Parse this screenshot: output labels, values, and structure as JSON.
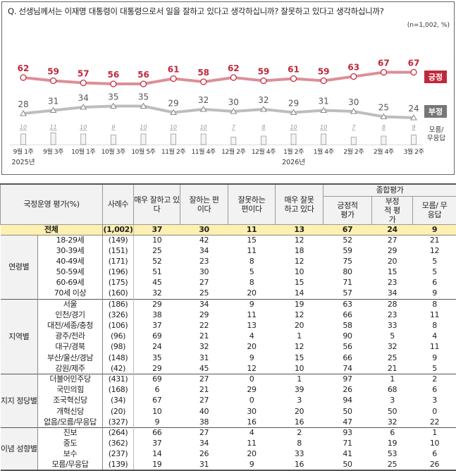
{
  "chart_data": {
    "type": "line",
    "title": "Q. 선생님께서는 이재명 대통령이 대통령으로서 일을 잘하고 있다고 생각하십니까? 잘못하고 있다고 생각하십니까?",
    "note": "(n=1,002, %)",
    "categories": [
      "9월 1주",
      "9월 3주",
      "10월 1주",
      "10월 3주",
      "10월 5주",
      "11월 2주",
      "11월 4주",
      "12월 2주",
      "12월 4주",
      "1월 2주",
      "1월 4주",
      "2월 2주",
      "2월 4주",
      "3월 2주"
    ],
    "year_labels": [
      {
        "at": "9월 1주",
        "label": "2025년"
      },
      {
        "at": "1월 2주",
        "label": "2026년"
      }
    ],
    "series": [
      {
        "name": "긍정",
        "type": "line",
        "color": "#c0283c",
        "values": [
          62,
          59,
          57,
          56,
          56,
          61,
          58,
          62,
          59,
          61,
          59,
          63,
          67,
          67
        ]
      },
      {
        "name": "부정",
        "type": "line",
        "color": "#8c8c8c",
        "values": [
          28,
          31,
          34,
          35,
          35,
          29,
          32,
          30,
          32,
          29,
          31,
          30,
          25,
          24
        ]
      },
      {
        "name": "모름/무응답",
        "type": "bar",
        "color": "#f4f4f4",
        "values": [
          10,
          11,
          10,
          9,
          10,
          10,
          10,
          7,
          8,
          10,
          10,
          7,
          8,
          9
        ]
      }
    ],
    "grid": false,
    "legend": "right"
  },
  "table": {
    "headers": {
      "title": "국정운영 평가(%)",
      "n": "사례수",
      "c1": "매우 잘하고 있다",
      "c2": "잘하는 편이다",
      "c3": "잘못하는 편이다",
      "c4": "매우 잘못하고 있다",
      "group": "종합평가",
      "c5": "긍정적 평가",
      "c6": "부정적 평가",
      "c7": "모름/ 무응답"
    },
    "total": {
      "label": "전체",
      "n": "(1,002)",
      "v": [
        37,
        30,
        11,
        13,
        67,
        24,
        9
      ]
    },
    "groups": [
      {
        "label": "연령별",
        "rows": [
          {
            "label": "18-29세",
            "n": "(149)",
            "v": [
              10,
              42,
              15,
              12,
              52,
              27,
              21
            ]
          },
          {
            "label": "30-39세",
            "n": "(151)",
            "v": [
              25,
              34,
              11,
              18,
              59,
              29,
              12
            ]
          },
          {
            "label": "40-49세",
            "n": "(171)",
            "v": [
              52,
              23,
              8,
              12,
              75,
              20,
              5
            ]
          },
          {
            "label": "50-59세",
            "n": "(196)",
            "v": [
              51,
              30,
              5,
              10,
              80,
              15,
              5
            ]
          },
          {
            "label": "60-69세",
            "n": "(175)",
            "v": [
              45,
              27,
              8,
              15,
              71,
              23,
              6
            ]
          },
          {
            "label": "70세 이상",
            "n": "(160)",
            "v": [
              32,
              25,
              20,
              14,
              57,
              34,
              9
            ]
          }
        ]
      },
      {
        "label": "지역별",
        "rows": [
          {
            "label": "서울",
            "n": "(186)",
            "v": [
              29,
              34,
              9,
              19,
              63,
              28,
              8
            ]
          },
          {
            "label": "인천/경기",
            "n": "(326)",
            "v": [
              38,
              29,
              11,
              12,
              66,
              23,
              11
            ]
          },
          {
            "label": "대전/세종/충청",
            "n": "(106)",
            "v": [
              37,
              22,
              13,
              20,
              58,
              33,
              8
            ]
          },
          {
            "label": "광주/전라",
            "n": "(96)",
            "v": [
              69,
              21,
              4,
              1,
              90,
              5,
              4
            ]
          },
          {
            "label": "대구/경북",
            "n": "(98)",
            "v": [
              24,
              32,
              20,
              12,
              56,
              32,
              11
            ]
          },
          {
            "label": "부산/울산/경남",
            "n": "(148)",
            "v": [
              35,
              31,
              9,
              15,
              66,
              25,
              9
            ]
          },
          {
            "label": "강원/제주",
            "n": "(42)",
            "v": [
              29,
              45,
              12,
              10,
              74,
              21,
              5
            ]
          }
        ]
      },
      {
        "label": "지지 정당별",
        "rows": [
          {
            "label": "더불어민주당",
            "n": "(431)",
            "v": [
              69,
              27,
              0,
              1,
              97,
              1,
              2
            ]
          },
          {
            "label": "국민의힘",
            "n": "(168)",
            "v": [
              6,
              21,
              29,
              39,
              26,
              68,
              6
            ]
          },
          {
            "label": "조국혁신당",
            "n": "(34)",
            "v": [
              67,
              27,
              0,
              3,
              94,
              3,
              3
            ]
          },
          {
            "label": "개혁신당",
            "n": "(20)",
            "v": [
              10,
              40,
              30,
              20,
              50,
              50,
              0
            ]
          },
          {
            "label": "없음/모름/무응답",
            "n": "(327)",
            "v": [
              9,
              38,
              16,
              16,
              47,
              32,
              22
            ]
          }
        ]
      },
      {
        "label": "이념 성향별",
        "rows": [
          {
            "label": "진보",
            "n": "(264)",
            "v": [
              66,
              27,
              4,
              2,
              93,
              6,
              1
            ]
          },
          {
            "label": "중도",
            "n": "(362)",
            "v": [
              37,
              34,
              11,
              8,
              71,
              19,
              10
            ]
          },
          {
            "label": "보수",
            "n": "(237)",
            "v": [
              14,
              26,
              20,
              33,
              41,
              53,
              6
            ]
          },
          {
            "label": "모름/무응답",
            "n": "(139)",
            "v": [
              19,
              31,
              9,
              16,
              50,
              25,
              26
            ]
          }
        ]
      }
    ]
  }
}
